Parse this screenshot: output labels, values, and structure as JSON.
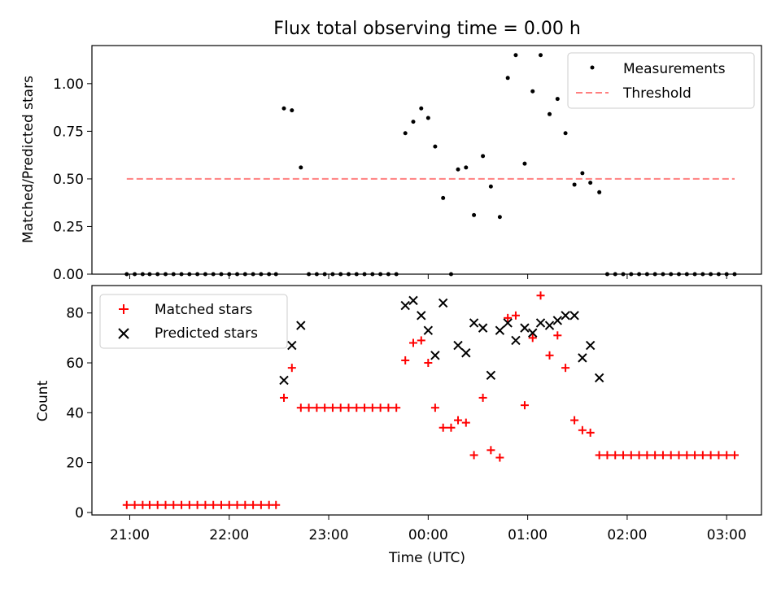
{
  "chart_data": [
    {
      "type": "scatter",
      "title": "Flux total observing time = 0.00 h",
      "ylabel": "Matched/Predicted stars",
      "xlabel": "",
      "ylim": [
        0.0,
        1.2
      ],
      "yticks": [
        0.0,
        0.25,
        0.5,
        0.75,
        1.0
      ],
      "ytick_labels": [
        "0.00",
        "0.25",
        "0.50",
        "0.75",
        "1.00"
      ],
      "legend_position": "top-right",
      "series": [
        {
          "name": "Measurements",
          "kind": "points",
          "color": "#000000",
          "points": [
            [
              20.97,
              0
            ],
            [
              21.05,
              0
            ],
            [
              21.13,
              0
            ],
            [
              21.2,
              0
            ],
            [
              21.28,
              0
            ],
            [
              21.36,
              0
            ],
            [
              21.44,
              0
            ],
            [
              21.52,
              0
            ],
            [
              21.6,
              0
            ],
            [
              21.68,
              0
            ],
            [
              21.76,
              0
            ],
            [
              21.84,
              0
            ],
            [
              21.92,
              0
            ],
            [
              22.0,
              0
            ],
            [
              22.08,
              0
            ],
            [
              22.16,
              0
            ],
            [
              22.24,
              0
            ],
            [
              22.32,
              0
            ],
            [
              22.4,
              0
            ],
            [
              22.47,
              0
            ],
            [
              22.55,
              0.87
            ],
            [
              22.63,
              0.86
            ],
            [
              22.72,
              0.56
            ],
            [
              22.8,
              0
            ],
            [
              22.88,
              0
            ],
            [
              22.96,
              0
            ],
            [
              23.04,
              0
            ],
            [
              23.12,
              0
            ],
            [
              23.2,
              0
            ],
            [
              23.28,
              0
            ],
            [
              23.36,
              0
            ],
            [
              23.44,
              0
            ],
            [
              23.52,
              0
            ],
            [
              23.6,
              0
            ],
            [
              23.68,
              0
            ],
            [
              23.77,
              0.74
            ],
            [
              23.85,
              0.8
            ],
            [
              23.93,
              0.87
            ],
            [
              24.0,
              0.82
            ],
            [
              24.07,
              0.67
            ],
            [
              24.15,
              0.4
            ],
            [
              24.23,
              0
            ],
            [
              24.3,
              0.55
            ],
            [
              24.38,
              0.56
            ],
            [
              24.46,
              0.31
            ],
            [
              24.55,
              0.62
            ],
            [
              24.63,
              0.46
            ],
            [
              24.72,
              0.3
            ],
            [
              24.8,
              1.03
            ],
            [
              24.88,
              1.15
            ],
            [
              24.97,
              0.58
            ],
            [
              25.05,
              0.96
            ],
            [
              25.13,
              1.15
            ],
            [
              25.22,
              0.84
            ],
            [
              25.3,
              0.92
            ],
            [
              25.38,
              0.74
            ],
            [
              25.47,
              0.47
            ],
            [
              25.55,
              0.53
            ],
            [
              25.63,
              0.48
            ],
            [
              25.72,
              0.43
            ],
            [
              25.8,
              0
            ],
            [
              25.88,
              0
            ],
            [
              25.96,
              0
            ],
            [
              26.04,
              0
            ],
            [
              26.12,
              0
            ],
            [
              26.2,
              0
            ],
            [
              26.28,
              0
            ],
            [
              26.36,
              0
            ],
            [
              26.44,
              0
            ],
            [
              26.52,
              0
            ],
            [
              26.6,
              0
            ],
            [
              26.68,
              0
            ],
            [
              26.76,
              0
            ],
            [
              26.84,
              0
            ],
            [
              26.92,
              0
            ],
            [
              27.0,
              0
            ],
            [
              27.08,
              0
            ]
          ]
        },
        {
          "name": "Threshold",
          "kind": "dashed-line",
          "color": "#ff8080",
          "points": [
            [
              20.97,
              0.5
            ],
            [
              27.08,
              0.5
            ]
          ]
        }
      ]
    },
    {
      "type": "scatter",
      "title": "",
      "ylabel": "Count",
      "xlabel": "Time (UTC)",
      "ylim": [
        -1,
        91
      ],
      "yticks": [
        0,
        20,
        40,
        60,
        80
      ],
      "ytick_labels": [
        "0",
        "20",
        "40",
        "60",
        "80"
      ],
      "xlim": [
        20.62,
        27.35
      ],
      "xticks": [
        21,
        22,
        23,
        24,
        25,
        26,
        27
      ],
      "xtick_labels": [
        "21:00",
        "22:00",
        "23:00",
        "00:00",
        "01:00",
        "02:00",
        "03:00"
      ],
      "legend_position": "top-left",
      "series": [
        {
          "name": "Matched stars",
          "kind": "plus",
          "color": "#ff0000",
          "points": [
            [
              20.97,
              3
            ],
            [
              21.05,
              3
            ],
            [
              21.13,
              3
            ],
            [
              21.2,
              3
            ],
            [
              21.28,
              3
            ],
            [
              21.36,
              3
            ],
            [
              21.44,
              3
            ],
            [
              21.52,
              3
            ],
            [
              21.6,
              3
            ],
            [
              21.68,
              3
            ],
            [
              21.76,
              3
            ],
            [
              21.84,
              3
            ],
            [
              21.92,
              3
            ],
            [
              22.0,
              3
            ],
            [
              22.08,
              3
            ],
            [
              22.16,
              3
            ],
            [
              22.24,
              3
            ],
            [
              22.32,
              3
            ],
            [
              22.4,
              3
            ],
            [
              22.47,
              3
            ],
            [
              22.55,
              46
            ],
            [
              22.63,
              58
            ],
            [
              22.72,
              42
            ],
            [
              22.8,
              42
            ],
            [
              22.88,
              42
            ],
            [
              22.96,
              42
            ],
            [
              23.04,
              42
            ],
            [
              23.12,
              42
            ],
            [
              23.2,
              42
            ],
            [
              23.28,
              42
            ],
            [
              23.36,
              42
            ],
            [
              23.44,
              42
            ],
            [
              23.52,
              42
            ],
            [
              23.6,
              42
            ],
            [
              23.68,
              42
            ],
            [
              23.77,
              61
            ],
            [
              23.85,
              68
            ],
            [
              23.93,
              69
            ],
            [
              24.0,
              60
            ],
            [
              24.07,
              42
            ],
            [
              24.15,
              34
            ],
            [
              24.23,
              34
            ],
            [
              24.3,
              37
            ],
            [
              24.38,
              36
            ],
            [
              24.46,
              23
            ],
            [
              24.55,
              46
            ],
            [
              24.63,
              25
            ],
            [
              24.72,
              22
            ],
            [
              24.8,
              78
            ],
            [
              24.88,
              79
            ],
            [
              24.97,
              43
            ],
            [
              25.05,
              70
            ],
            [
              25.13,
              87
            ],
            [
              25.22,
              63
            ],
            [
              25.3,
              71
            ],
            [
              25.38,
              58
            ],
            [
              25.47,
              37
            ],
            [
              25.55,
              33
            ],
            [
              25.63,
              32
            ],
            [
              25.72,
              23
            ],
            [
              25.8,
              23
            ],
            [
              25.88,
              23
            ],
            [
              25.96,
              23
            ],
            [
              26.04,
              23
            ],
            [
              26.12,
              23
            ],
            [
              26.2,
              23
            ],
            [
              26.28,
              23
            ],
            [
              26.36,
              23
            ],
            [
              26.44,
              23
            ],
            [
              26.52,
              23
            ],
            [
              26.6,
              23
            ],
            [
              26.68,
              23
            ],
            [
              26.76,
              23
            ],
            [
              26.84,
              23
            ],
            [
              26.92,
              23
            ],
            [
              27.0,
              23
            ],
            [
              27.08,
              23
            ]
          ]
        },
        {
          "name": "Predicted stars",
          "kind": "x",
          "color": "#000000",
          "points": [
            [
              22.55,
              53
            ],
            [
              22.63,
              67
            ],
            [
              22.72,
              75
            ],
            [
              23.77,
              83
            ],
            [
              23.85,
              85
            ],
            [
              23.93,
              79
            ],
            [
              24.0,
              73
            ],
            [
              24.07,
              63
            ],
            [
              24.15,
              84
            ],
            [
              24.3,
              67
            ],
            [
              24.38,
              64
            ],
            [
              24.46,
              76
            ],
            [
              24.55,
              74
            ],
            [
              24.63,
              55
            ],
            [
              24.72,
              73
            ],
            [
              24.8,
              76
            ],
            [
              24.88,
              69
            ],
            [
              24.97,
              74
            ],
            [
              25.05,
              72
            ],
            [
              25.13,
              76
            ],
            [
              25.22,
              75
            ],
            [
              25.3,
              77
            ],
            [
              25.38,
              79
            ],
            [
              25.47,
              79
            ],
            [
              25.55,
              62
            ],
            [
              25.63,
              67
            ],
            [
              25.72,
              54
            ]
          ]
        }
      ]
    }
  ]
}
